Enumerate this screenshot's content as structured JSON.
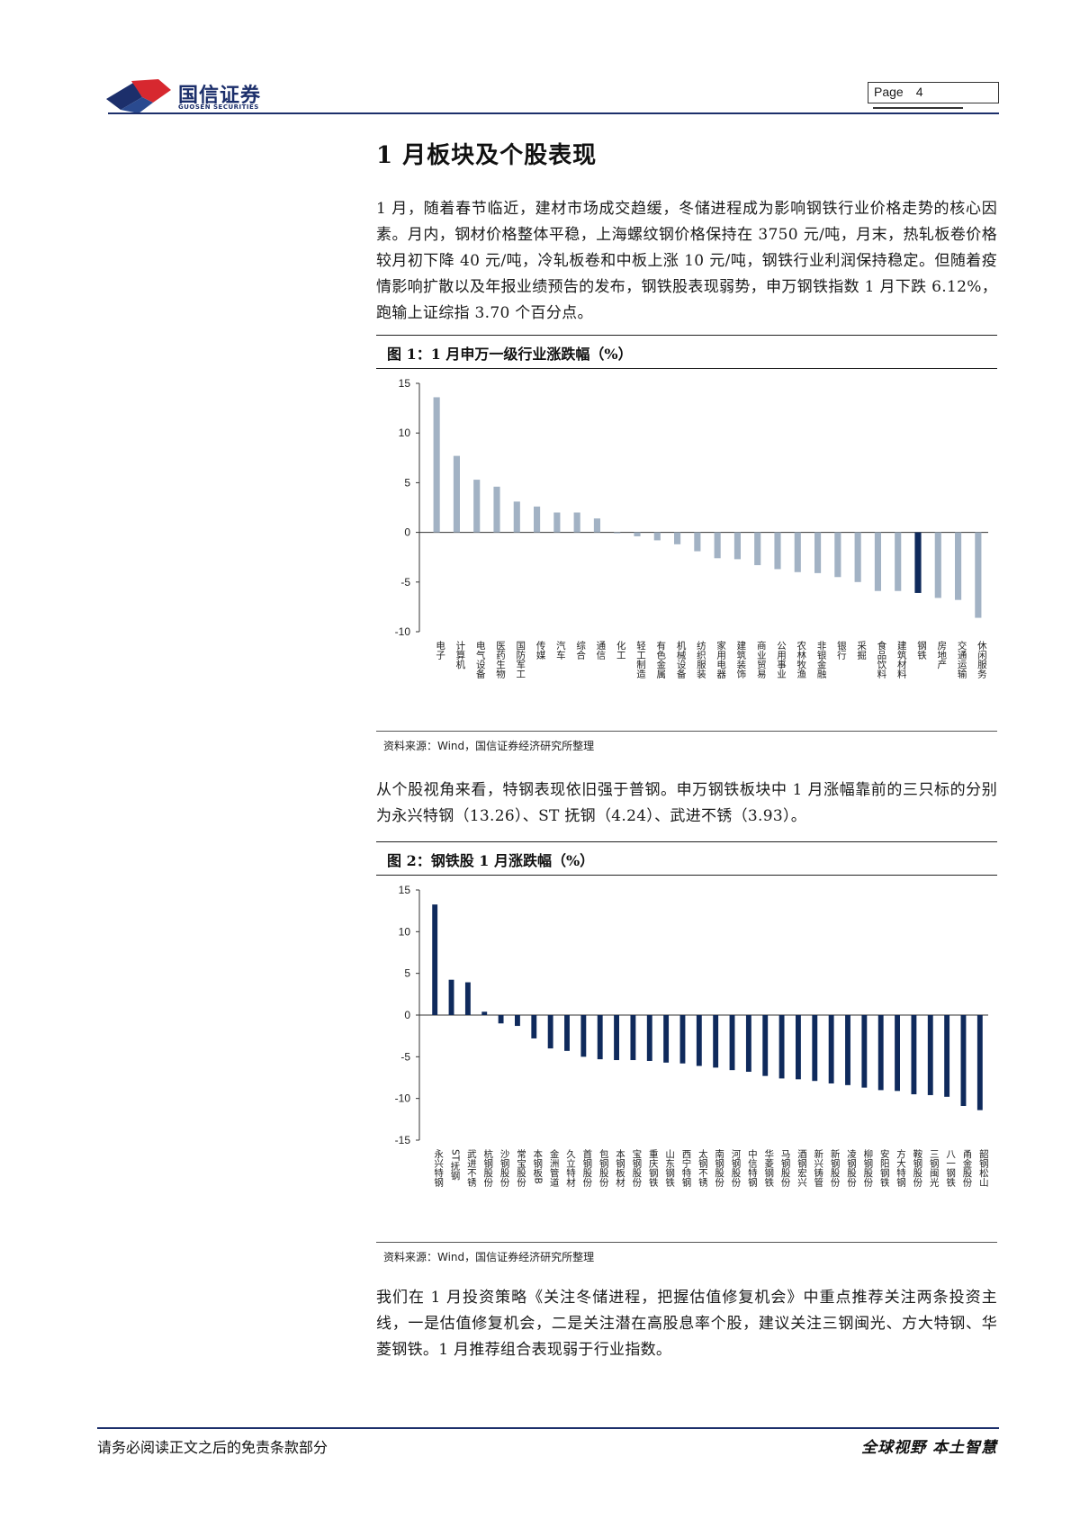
{
  "header": {
    "brand_cn": "国信证券",
    "brand_en": "GUOSEN SECURITIES",
    "page_label": "Page",
    "page_number": "4"
  },
  "section_title": "1 月板块及个股表现",
  "paragraphs": {
    "p1": "1 月，随着春节临近，建材市场成交趋缓，冬储进程成为影响钢铁行业价格走势的核心因素。月内，钢材价格整体平稳，上海螺纹钢价格保持在 3750 元/吨，月末，热轧板卷价格较月初下降 40 元/吨，冷轧板卷和中板上涨 10 元/吨，钢铁行业利润保持稳定。但随着疫情影响扩散以及年报业绩预告的发布，钢铁股表现弱势，申万钢铁指数 1 月下跌 6.12%，跑输上证综指 3.70 个百分点。",
    "p2": "从个股视角来看，特钢表现依旧强于普钢。申万钢铁板块中 1 月涨幅靠前的三只标的分别为永兴特钢（13.26）、ST 抚钢（4.24）、武进不锈（3.93）。",
    "p3": "我们在 1 月投资策略《关注冬储进程，把握估值修复机会》中重点推荐关注两条投资主线，一是估值修复机会，二是关注潜在高股息率个股，建议关注三钢闽光、方大特钢、华菱钢铁。1 月推荐组合表现弱于行业指数。"
  },
  "figures": {
    "fig1_title": "图 1：1 月申万一级行业涨跌幅（%）",
    "fig2_title": "图 2：钢铁股 1 月涨跌幅（%）",
    "source1": "资料来源：Wind，国信证券经济研究所整理",
    "source2": "资料来源：Wind，国信证券经济研究所整理"
  },
  "footer": {
    "left": "请务必阅读正文之后的免责条款部分",
    "right": "全球视野  本土智慧"
  },
  "colors": {
    "brand_navy": "#1c2f6b",
    "bar_gray": "#a2b2c4",
    "bar_highlight": "#0f2a5c",
    "bar_navy": "#0f2a5c",
    "logo_red": "#d7282f"
  },
  "chart_data": [
    {
      "type": "bar",
      "title": "",
      "ylim": [
        -10,
        15
      ],
      "yticks": [
        15,
        10,
        5,
        0,
        -5,
        -10
      ],
      "highlight_category": "钢铁",
      "categories": [
        "电子",
        "计算机",
        "电气设备",
        "医药生物",
        "国防军工",
        "传媒",
        "汽车",
        "综合",
        "通信",
        "化工",
        "轻工制造",
        "有色金属",
        "机械设备",
        "纺织服装",
        "家用电器",
        "建筑装饰",
        "商业贸易",
        "公用事业",
        "农林牧渔",
        "非银金融",
        "银行",
        "采掘",
        "食品饮料",
        "建筑材料",
        "钢铁",
        "房地产",
        "交通运输",
        "休闲服务"
      ],
      "values": [
        13.6,
        7.7,
        5.3,
        4.6,
        3.1,
        2.6,
        2.0,
        2.0,
        1.4,
        -0.1,
        -0.4,
        -0.8,
        -1.2,
        -1.9,
        -2.6,
        -2.7,
        -3.3,
        -3.7,
        -4.0,
        -4.1,
        -4.5,
        -5.0,
        -5.9,
        -5.9,
        -6.1,
        -6.6,
        -6.8,
        -8.6
      ]
    },
    {
      "type": "bar",
      "title": "",
      "ylim": [
        -15,
        15
      ],
      "yticks": [
        15,
        10,
        5,
        0,
        -5,
        -10,
        -15
      ],
      "categories": [
        "永兴特钢",
        "ST抚钢",
        "武进不锈",
        "杭钢股份",
        "沙钢股份",
        "常宝股份",
        "本钢板B",
        "金洲管道",
        "久立特材",
        "首钢股份",
        "包钢股份",
        "本钢板材",
        "宝钢股份",
        "重庆钢铁",
        "山东钢铁",
        "西宁特钢",
        "太钢不锈",
        "南钢股份",
        "河钢股份",
        "中信特钢",
        "华菱钢铁",
        "马钢股份",
        "酒钢宏兴",
        "新兴铸管",
        "新钢股份",
        "凌钢股份",
        "柳钢股份",
        "安阳钢铁",
        "方大特钢",
        "鞍钢股份",
        "三钢闽光",
        "八一钢铁",
        "甬金股份",
        "韶钢松山"
      ],
      "values": [
        13.26,
        4.24,
        3.93,
        0.4,
        -1.0,
        -1.3,
        -2.8,
        -4.0,
        -4.3,
        -5.0,
        -5.3,
        -5.4,
        -5.4,
        -5.5,
        -5.7,
        -5.8,
        -6.1,
        -6.3,
        -6.6,
        -6.8,
        -7.3,
        -7.6,
        -7.7,
        -7.9,
        -8.2,
        -8.4,
        -8.7,
        -9.0,
        -9.1,
        -9.5,
        -9.6,
        -9.8,
        -10.9,
        -11.4
      ]
    }
  ]
}
